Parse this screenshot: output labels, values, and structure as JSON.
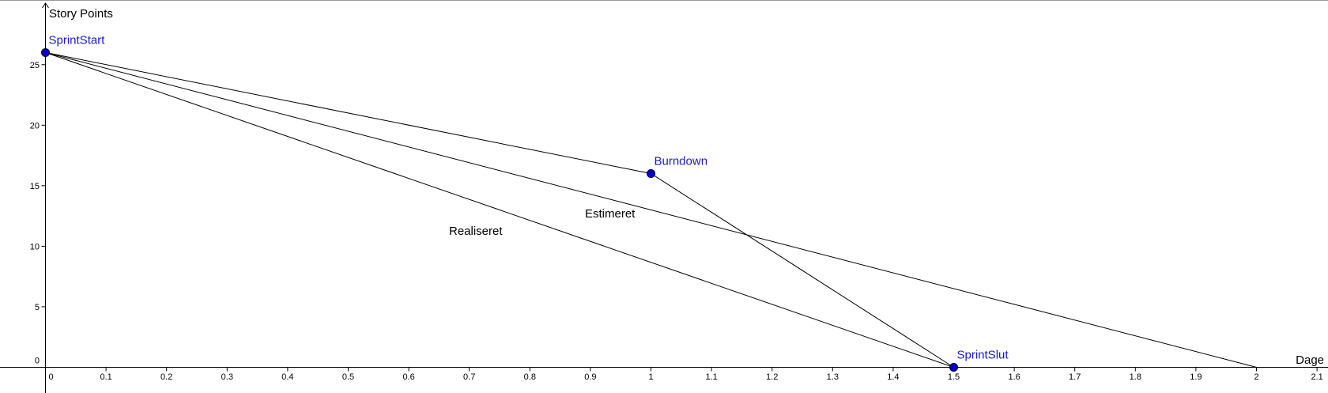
{
  "chart_data": {
    "type": "line",
    "title": "",
    "xlabel": "Dage",
    "ylabel": "Story Points",
    "xlim": [
      0,
      2.1
    ],
    "ylim": [
      0,
      26
    ],
    "grid": false,
    "x_ticks": [
      "0",
      "0.1",
      "0.2",
      "0.3",
      "0.4",
      "0.5",
      "0.6",
      "0.7",
      "0.8",
      "0.9",
      "1",
      "1.1",
      "1.2",
      "1.3",
      "1.4",
      "1.5",
      "1.6",
      "1.7",
      "1.8",
      "1.9",
      "2",
      "2.1"
    ],
    "y_ticks": [
      "0",
      "5",
      "10",
      "15",
      "20",
      "25"
    ],
    "points": [
      {
        "name": "SprintStart",
        "x": 0,
        "y": 26
      },
      {
        "name": "Burndown",
        "x": 1,
        "y": 16
      },
      {
        "name": "SprintSlut",
        "x": 1.5,
        "y": 0
      }
    ],
    "series": [
      {
        "name": "Estimeret",
        "x": [
          0,
          2
        ],
        "y": [
          26,
          0
        ]
      },
      {
        "name": "Realiseret",
        "x": [
          0,
          1.5
        ],
        "y": [
          26,
          0
        ]
      },
      {
        "name": "Burndown path",
        "x": [
          0,
          1,
          1.5
        ],
        "y": [
          26,
          16,
          0
        ]
      }
    ],
    "annotations": [
      "Estimeret",
      "Realiseret"
    ],
    "colors": {
      "point_fill": "#0000cc",
      "point_label": "#1a1acc",
      "line": "#000000",
      "axis": "#000000",
      "top_border": "#999999"
    }
  }
}
